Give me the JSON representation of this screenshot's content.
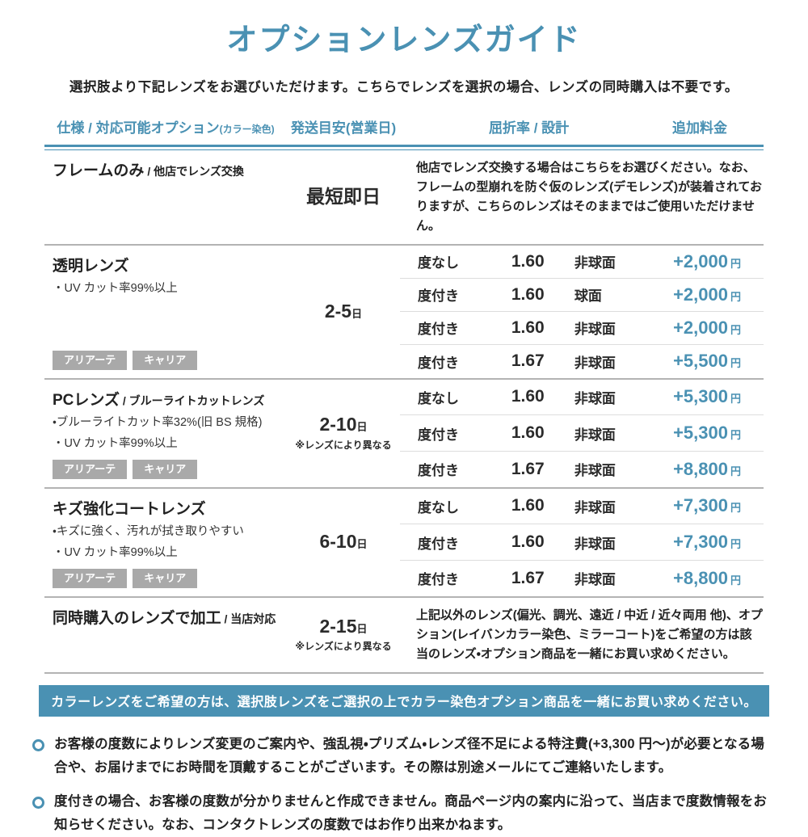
{
  "page": {
    "title": "オプションレンズガイド",
    "subtitle": "選択肢より下記レンズをお選びいただけます。こちらでレンズを選択の場合、レンズの同時購入は不要です。"
  },
  "colors": {
    "accent": "#4a91b3",
    "badge_gray": "#a9a9a9",
    "divider_gray": "#b3b3b3"
  },
  "table": {
    "headers": {
      "spec": "仕様 / 対応可能オプション",
      "spec_note": "(カラー染色)",
      "shipping": "発送目安(営業日)",
      "refraction": "屈折率 / 設計",
      "price": "追加料金"
    },
    "day_unit": "日",
    "currency": "円",
    "rows": [
      {
        "name": "フレームのみ",
        "name_suffix": " / 他店でレンズ交換",
        "shipping_text": "最短即日",
        "note": "他店でレンズ交換する場合はこちらをお選びください。なお、フレームの型崩れを防ぐ仮のレンズ(デモレンズ)が装着されておりますが、こちらのレンズはそのままではご使用いただけません。"
      },
      {
        "name": "透明レンズ",
        "name_suffix": "",
        "shipping_days": "2-5",
        "features": [
          "・UV カット率99%以上"
        ],
        "badges": [
          "アリアーテ",
          "キャリア"
        ],
        "options": [
          {
            "type": "度なし",
            "index": "1.60",
            "design": "非球面",
            "price": "+2,000"
          },
          {
            "type": "度付き",
            "index": "1.60",
            "design": "球面",
            "price": "+2,000"
          },
          {
            "type": "度付き",
            "index": "1.60",
            "design": "非球面",
            "price": "+2,000"
          },
          {
            "type": "度付き",
            "index": "1.67",
            "design": "非球面",
            "price": "+5,500"
          }
        ]
      },
      {
        "name": "PCレンズ",
        "name_suffix": " / ブルーライトカットレンズ",
        "shipping_days": "2-10",
        "shipping_note": "※レンズにより異なる",
        "features": [
          "・ブルーライトカット率32%(旧 BS 規格)",
          "・UV カット率99%以上"
        ],
        "badges": [
          "アリアーテ",
          "キャリア"
        ],
        "options": [
          {
            "type": "度なし",
            "index": "1.60",
            "design": "非球面",
            "price": "+5,300"
          },
          {
            "type": "度付き",
            "index": "1.60",
            "design": "非球面",
            "price": "+5,300"
          },
          {
            "type": "度付き",
            "index": "1.67",
            "design": "非球面",
            "price": "+8,800"
          }
        ]
      },
      {
        "name": "キズ強化コートレンズ",
        "name_suffix": "",
        "shipping_days": "6-10",
        "features": [
          "・キズに強く、汚れが拭き取りやすい",
          "・UV カット率99%以上"
        ],
        "badges": [
          "アリアーテ",
          "キャリア"
        ],
        "options": [
          {
            "type": "度なし",
            "index": "1.60",
            "design": "非球面",
            "price": "+7,300"
          },
          {
            "type": "度付き",
            "index": "1.60",
            "design": "非球面",
            "price": "+7,300"
          },
          {
            "type": "度付き",
            "index": "1.67",
            "design": "非球面",
            "price": "+8,800"
          }
        ]
      },
      {
        "name": "同時購入のレンズで加工",
        "name_suffix": " / 当店対応",
        "shipping_days": "2-15",
        "shipping_note": "※レンズにより異なる",
        "note": "上記以外のレンズ(偏光、調光、遠近 / 中近 / 近々両用 他)、オプション(レイバンカラー染色、ミラーコート)をご希望の方は該当のレンズ・オプション商品を一緒にお買い求めください。"
      }
    ]
  },
  "banner": {
    "text": "カラーレンズをご希望の方は、選択肢レンズをご選択の上でカラー染色オプション商品を一緒にお買い求めください。"
  },
  "footnotes": [
    "お客様の度数によりレンズ変更のご案内や、強乱視・プリズム・レンズ径不足による特注費(+3,300 円〜)が必要となる場合や、お届けまでにお時間を頂戴することがございます。その際は別途メールにてご連絡いたします。",
    "度付きの場合、お客様の度数が分かりませんと作成できません。商品ページ内の案内に沿って、当店まで度数情報をお知らせください。なお、コンタクトレンズの度数ではお作り出来かねます。"
  ]
}
